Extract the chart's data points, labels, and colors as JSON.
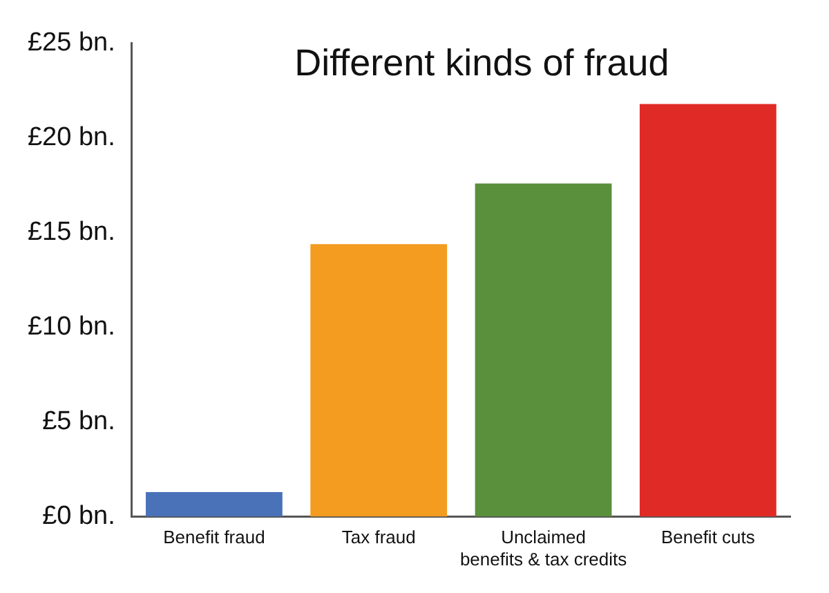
{
  "chart_data": {
    "type": "bar",
    "title": "Different kinds of fraud",
    "categories": [
      "Benefit fraud",
      "Tax fraud",
      "Unclaimed benefits & tax credits",
      "Benefit cuts"
    ],
    "values": [
      1.3,
      14.4,
      17.6,
      21.8
    ],
    "colors": [
      "#4a72b8",
      "#f39c1f",
      "#5a8f3c",
      "#e02a26"
    ],
    "ylim": [
      0,
      25
    ],
    "yticks": [
      {
        "value": 0,
        "label": "£0 bn."
      },
      {
        "value": 5,
        "label": "£5 bn."
      },
      {
        "value": 10,
        "label": "£10 bn."
      },
      {
        "value": 15,
        "label": "£15 bn."
      },
      {
        "value": 20,
        "label": "£20 bn."
      },
      {
        "value": 25,
        "label": "£25 bn."
      }
    ],
    "grid": false,
    "legend": false
  }
}
